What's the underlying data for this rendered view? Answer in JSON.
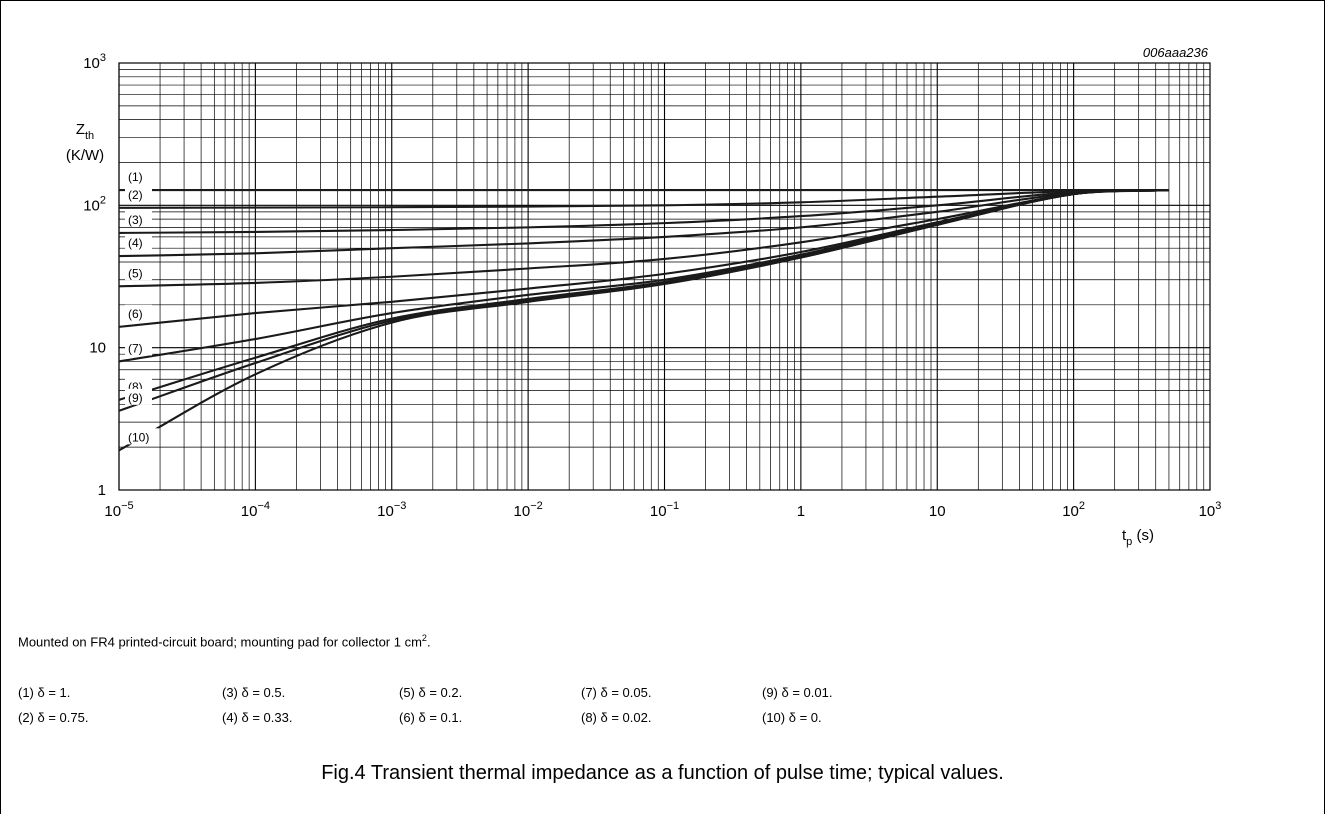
{
  "figure_code": "006aaa236",
  "note": {
    "text": "Mounted on FR4 printed-circuit board; mounting pad for collector 1 cm",
    "superscript": "2",
    "suffix": "."
  },
  "legend_rows": [
    [
      "(1)  δ = 1.",
      "(3)  δ = 0.5.",
      "(5)  δ = 0.2.",
      "(7)  δ = 0.05.",
      "(9)  δ = 0.01."
    ],
    [
      "(2)  δ = 0.75.",
      "(4)  δ = 0.33.",
      "(6)  δ = 0.1.",
      "(8)  δ = 0.02.",
      "(10) δ = 0."
    ]
  ],
  "caption": "Fig.4  Transient thermal impedance as a function of pulse time; typical values.",
  "chart_data": {
    "type": "line",
    "xscale": "log",
    "yscale": "log",
    "xlim": [
      1e-05,
      1000
    ],
    "ylim": [
      1,
      1000
    ],
    "grid": true,
    "xlabel": {
      "main": "t",
      "sub": "p",
      "unit": " (s)"
    },
    "ylabel": {
      "main": "Z",
      "sub": "th",
      "unit": "(K/W)"
    },
    "x_ticks": [
      {
        "value": 1e-05,
        "base": "10",
        "exp": "−5"
      },
      {
        "value": 0.0001,
        "base": "10",
        "exp": "−4"
      },
      {
        "value": 0.001,
        "base": "10",
        "exp": "−3"
      },
      {
        "value": 0.01,
        "base": "10",
        "exp": "−2"
      },
      {
        "value": 0.1,
        "base": "10",
        "exp": "−1"
      },
      {
        "value": 1,
        "base": "1",
        "exp": ""
      },
      {
        "value": 10,
        "base": "10",
        "exp": ""
      },
      {
        "value": 100,
        "base": "10",
        "exp": "2"
      },
      {
        "value": 1000,
        "base": "10",
        "exp": "3"
      }
    ],
    "y_ticks": [
      {
        "value": 1,
        "base": "1",
        "exp": ""
      },
      {
        "value": 10,
        "base": "10",
        "exp": ""
      },
      {
        "value": 100,
        "base": "10",
        "exp": "2"
      },
      {
        "value": 1000,
        "base": "10",
        "exp": "3"
      }
    ],
    "series": [
      {
        "name": "(1)",
        "x": [
          1e-05,
          500
        ],
        "y": [
          128,
          128
        ]
      },
      {
        "name": "(2)",
        "x": [
          1e-05,
          0.001,
          0.01,
          0.1,
          1,
          10,
          100,
          500
        ],
        "y": [
          96,
          97,
          98,
          100,
          105,
          115,
          126,
          128
        ]
      },
      {
        "name": "(3)",
        "x": [
          1e-05,
          0.0001,
          0.001,
          0.01,
          0.1,
          1,
          10,
          100,
          500
        ],
        "y": [
          64,
          65,
          67,
          70,
          75,
          84,
          100,
          124,
          128
        ]
      },
      {
        "name": "(4)",
        "x": [
          1e-05,
          0.0001,
          0.001,
          0.01,
          0.1,
          1,
          10,
          100,
          500
        ],
        "y": [
          44,
          46,
          50,
          54,
          60,
          70,
          90,
          122,
          128
        ]
      },
      {
        "name": "(5)",
        "x": [
          1e-05,
          0.0001,
          0.001,
          0.01,
          0.1,
          1,
          10,
          100,
          500
        ],
        "y": [
          27,
          28.5,
          31.5,
          36,
          42,
          55,
          80,
          120,
          128
        ]
      },
      {
        "name": "(6)",
        "x": [
          1e-05,
          0.0001,
          0.001,
          0.01,
          0.1,
          1,
          10,
          100,
          500
        ],
        "y": [
          14,
          17.5,
          21,
          26,
          33,
          47,
          76,
          120,
          128
        ]
      },
      {
        "name": "(7)",
        "x": [
          1e-05,
          0.0001,
          0.001,
          0.01,
          0.1,
          1,
          10,
          100,
          500
        ],
        "y": [
          8,
          11.5,
          17.5,
          23.5,
          30,
          45,
          75,
          120,
          128
        ]
      },
      {
        "name": "(8)",
        "x": [
          1e-05,
          0.0001,
          0.001,
          0.01,
          0.1,
          1,
          10,
          100,
          500
        ],
        "y": [
          4.3,
          8.5,
          16,
          22,
          29,
          44,
          74,
          120,
          128
        ]
      },
      {
        "name": "(9)",
        "x": [
          1e-05,
          0.0001,
          0.001,
          0.01,
          0.1,
          1,
          10,
          100,
          500
        ],
        "y": [
          3.6,
          7.8,
          15.5,
          21.5,
          28.5,
          43,
          73,
          120,
          128
        ]
      },
      {
        "name": "(10)",
        "x": [
          1e-05,
          0.0001,
          0.001,
          0.01,
          0.1,
          1,
          10,
          100,
          500
        ],
        "y": [
          1.9,
          6.5,
          15,
          21,
          28,
          43,
          73,
          120,
          128
        ]
      }
    ]
  }
}
